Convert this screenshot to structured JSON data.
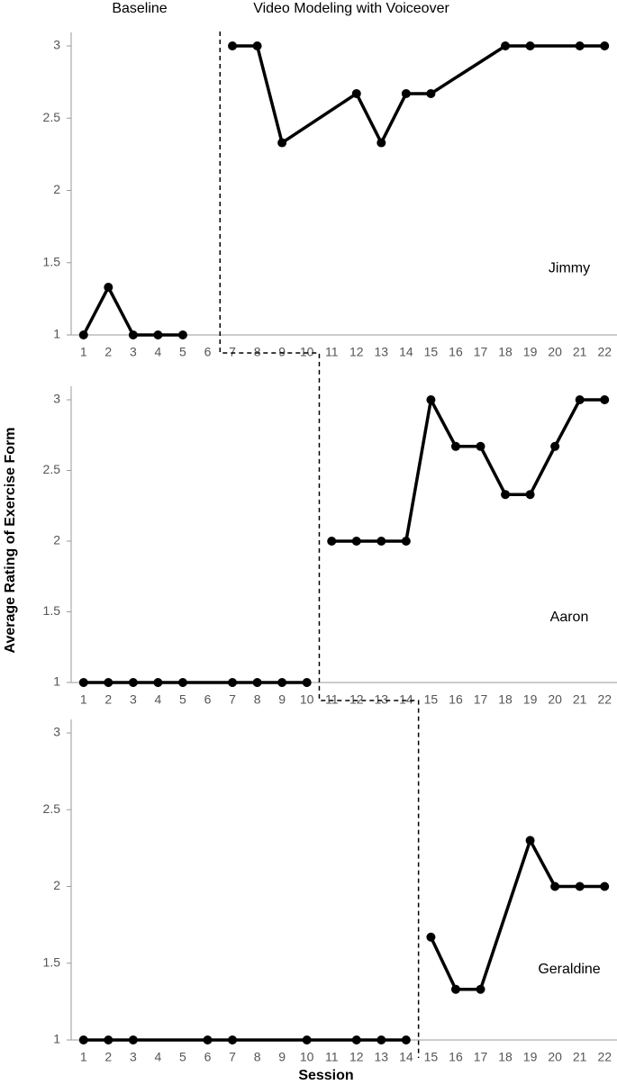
{
  "xlabel": "Session",
  "ylabel": "Average Rating of Exercise Form",
  "phases": [
    "Baseline",
    "Video Modeling with Voiceover"
  ],
  "chart_data": [
    {
      "type": "line",
      "title": "Jimmy",
      "xlim": [
        0.5,
        22.5
      ],
      "ylim": [
        1,
        3
      ],
      "yticks": [
        1,
        1.5,
        2,
        2.5,
        3
      ],
      "xticks": [
        1,
        2,
        3,
        4,
        5,
        6,
        7,
        8,
        9,
        10,
        11,
        12,
        13,
        14,
        15,
        16,
        17,
        18,
        19,
        20,
        21,
        22
      ],
      "series": [
        {
          "color": "#000000",
          "x": [
            1,
            2,
            3,
            4,
            5
          ],
          "values": [
            1,
            1.33,
            1,
            1,
            1
          ]
        },
        {
          "color": "#000000",
          "x": [
            7,
            8,
            9,
            12,
            13,
            14,
            15,
            18,
            19,
            21,
            22
          ],
          "values": [
            3,
            3,
            2.33,
            2.67,
            2.33,
            2.67,
            2.67,
            3,
            3,
            3,
            3
          ]
        }
      ]
    },
    {
      "type": "line",
      "title": "Aaron",
      "xlim": [
        0.5,
        22.5
      ],
      "ylim": [
        1,
        3
      ],
      "yticks": [
        1,
        1.5,
        2,
        2.5,
        3
      ],
      "xticks": [
        1,
        2,
        3,
        4,
        5,
        6,
        7,
        8,
        9,
        10,
        11,
        12,
        13,
        14,
        15,
        16,
        17,
        18,
        19,
        20,
        21,
        22
      ],
      "series": [
        {
          "color": "#000000",
          "x": [
            1,
            2,
            3,
            4,
            5,
            7,
            8,
            9,
            10
          ],
          "values": [
            1,
            1,
            1,
            1,
            1,
            1,
            1,
            1,
            1
          ]
        },
        {
          "color": "#000000",
          "x": [
            11,
            12,
            13,
            14,
            15,
            16,
            17,
            18,
            19,
            20,
            21,
            22
          ],
          "values": [
            2,
            2,
            2,
            2,
            3,
            2.67,
            2.67,
            2.33,
            2.33,
            2.67,
            3,
            3
          ]
        }
      ]
    },
    {
      "type": "line",
      "title": "Geraldine",
      "xlim": [
        0.5,
        22.5
      ],
      "ylim": [
        1,
        3
      ],
      "yticks": [
        1,
        1.5,
        2,
        2.5,
        3
      ],
      "xticks": [
        1,
        2,
        3,
        4,
        5,
        6,
        7,
        8,
        9,
        10,
        11,
        12,
        13,
        14,
        15,
        16,
        17,
        18,
        19,
        20,
        21,
        22
      ],
      "series": [
        {
          "color": "#000000",
          "x": [
            1,
            2,
            3,
            6,
            7,
            10,
            12,
            13,
            14
          ],
          "values": [
            1,
            1,
            1,
            1,
            1,
            1,
            1,
            1,
            1
          ]
        },
        {
          "color": "#000000",
          "x": [
            15,
            16,
            17,
            19,
            20,
            21,
            22
          ],
          "values": [
            1.67,
            1.33,
            1.33,
            2.3,
            2,
            2,
            2
          ]
        }
      ]
    }
  ]
}
